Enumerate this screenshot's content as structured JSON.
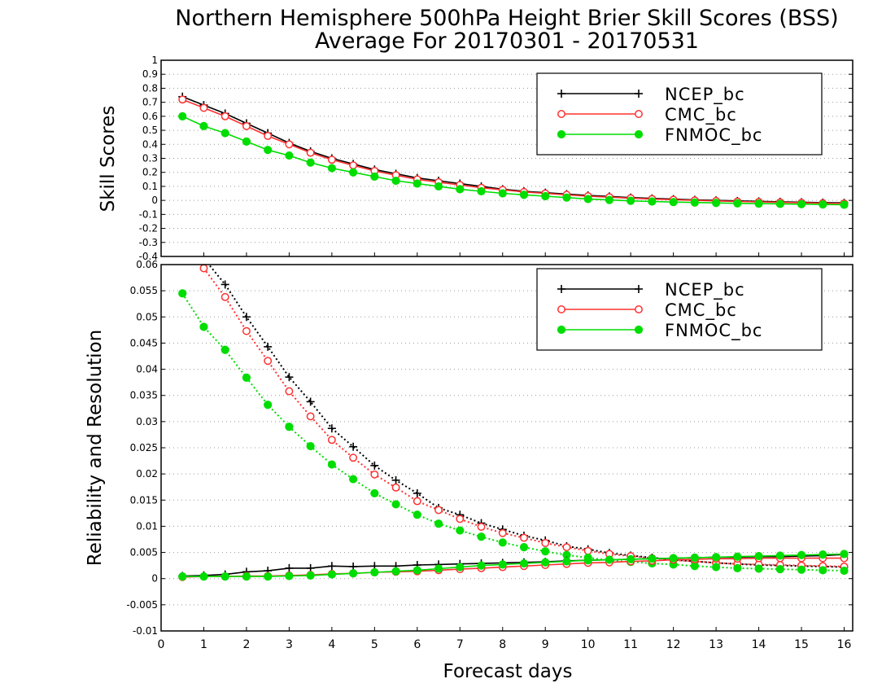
{
  "chart_data": [
    {
      "type": "line",
      "title": "Northern Hemisphere 500hPa Height Brier Skill Scores (BSS)",
      "subtitle": "Average For 20170301 - 20170531",
      "ylabel": "Skill Scores",
      "ylim": [
        -0.4,
        1.0
      ],
      "yticks": [
        -0.4,
        -0.3,
        -0.2,
        -0.1,
        0,
        0.1,
        0.2,
        0.3,
        0.4,
        0.5,
        0.6,
        0.7,
        0.8,
        0.9,
        1
      ],
      "ytick_labels": [
        "-0.4",
        "-0.3",
        "-0.2",
        "-0.1",
        "0",
        "0.1",
        "0.2",
        "0.3",
        "0.4",
        "0.5",
        "0.6",
        "0.7",
        "0.8",
        "0.9",
        "1"
      ],
      "grid": true,
      "legend_position": "top-right",
      "x": [
        0.5,
        1.0,
        1.5,
        2.0,
        2.5,
        3.0,
        3.5,
        4.0,
        4.5,
        5.0,
        5.5,
        6.0,
        6.5,
        7.0,
        7.5,
        8.0,
        8.5,
        9.0,
        9.5,
        10.0,
        10.5,
        11.0,
        11.5,
        12.0,
        12.5,
        13.0,
        13.5,
        14.0,
        14.5,
        15.0,
        15.5,
        16.0
      ],
      "series": [
        {
          "name": "NCEP_bc",
          "color": "#000000",
          "marker": "plus",
          "values": [
            0.74,
            0.68,
            0.62,
            0.55,
            0.48,
            0.41,
            0.35,
            0.3,
            0.26,
            0.22,
            0.19,
            0.16,
            0.14,
            0.12,
            0.1,
            0.08,
            0.065,
            0.055,
            0.045,
            0.035,
            0.028,
            0.02,
            0.014,
            0.009,
            0.004,
            0.0,
            -0.004,
            -0.007,
            -0.01,
            -0.013,
            -0.016,
            -0.018
          ]
        },
        {
          "name": "CMC_bc",
          "color": "#ff3030",
          "marker": "open-circle",
          "values": [
            0.72,
            0.66,
            0.6,
            0.53,
            0.46,
            0.4,
            0.34,
            0.29,
            0.25,
            0.21,
            0.18,
            0.15,
            0.13,
            0.11,
            0.09,
            0.075,
            0.06,
            0.05,
            0.04,
            0.03,
            0.023,
            0.016,
            0.01,
            0.005,
            0.0,
            -0.004,
            -0.008,
            -0.011,
            -0.014,
            -0.017,
            -0.02,
            -0.022
          ]
        },
        {
          "name": "FNMOC_bc",
          "color": "#00dd00",
          "marker": "filled-circle",
          "values": [
            0.6,
            0.53,
            0.48,
            0.42,
            0.36,
            0.32,
            0.27,
            0.23,
            0.2,
            0.17,
            0.14,
            0.12,
            0.1,
            0.08,
            0.065,
            0.05,
            0.04,
            0.03,
            0.02,
            0.01,
            0.003,
            -0.003,
            -0.008,
            -0.012,
            -0.015,
            -0.018,
            -0.021,
            -0.023,
            -0.025,
            -0.027,
            -0.029,
            -0.031
          ]
        }
      ]
    },
    {
      "type": "line",
      "ylabel": "Reliability and Resolution",
      "xlabel": "Forecast days",
      "xlim": [
        0,
        16.2
      ],
      "ylim": [
        -0.01,
        0.06
      ],
      "yticks": [
        -0.01,
        -0.005,
        0,
        0.005,
        0.01,
        0.015,
        0.02,
        0.025,
        0.03,
        0.035,
        0.04,
        0.045,
        0.05,
        0.055,
        0.06
      ],
      "ytick_labels": [
        "-0.01",
        "-0.005",
        "0",
        "0.005",
        "0.01",
        "0.015",
        "0.02",
        "0.025",
        "0.03",
        "0.035",
        "0.04",
        "0.045",
        "0.05",
        "0.055",
        "0.06"
      ],
      "xticks": [
        0,
        1,
        2,
        3,
        4,
        5,
        6,
        7,
        8,
        9,
        10,
        11,
        12,
        13,
        14,
        15,
        16
      ],
      "xtick_labels": [
        "0",
        "1",
        "2",
        "3",
        "4",
        "5",
        "6",
        "7",
        "8",
        "9",
        "10",
        "11",
        "12",
        "13",
        "14",
        "15",
        "16"
      ],
      "grid": true,
      "legend_position": "top-right",
      "x": [
        0.5,
        1.0,
        1.5,
        2.0,
        2.5,
        3.0,
        3.5,
        4.0,
        4.5,
        5.0,
        5.5,
        6.0,
        6.5,
        7.0,
        7.5,
        8.0,
        8.5,
        9.0,
        9.5,
        10.0,
        10.5,
        11.0,
        11.5,
        12.0,
        12.5,
        13.0,
        13.5,
        14.0,
        14.5,
        15.0,
        15.5,
        16.0
      ],
      "series": [
        {
          "name": "NCEP_bc",
          "quantity": "reliability",
          "color": "#000000",
          "marker": "plus",
          "line": "dotted",
          "values": [
            0.0655,
            0.0612,
            0.0562,
            0.05,
            0.0443,
            0.0385,
            0.0338,
            0.0287,
            0.0252,
            0.0216,
            0.0188,
            0.0163,
            0.0135,
            0.0122,
            0.0106,
            0.0094,
            0.0082,
            0.0073,
            0.0062,
            0.0056,
            0.0049,
            0.0044,
            0.004,
            0.0036,
            0.0033,
            0.003,
            0.0028,
            0.0026,
            0.0025,
            0.0024,
            0.0023,
            0.0022
          ]
        },
        {
          "name": "CMC_bc",
          "quantity": "reliability",
          "color": "#ff3030",
          "marker": "open-circle",
          "line": "dotted",
          "values": [
            0.064,
            0.0593,
            0.0538,
            0.0473,
            0.0416,
            0.0358,
            0.031,
            0.0265,
            0.0231,
            0.0199,
            0.0174,
            0.0148,
            0.0131,
            0.0114,
            0.0099,
            0.0087,
            0.0078,
            0.0068,
            0.006,
            0.0053,
            0.0047,
            0.0043,
            0.0039,
            0.0035,
            0.0033,
            0.003,
            0.0028,
            0.0027,
            0.0026,
            0.0025,
            0.0024,
            0.0023
          ]
        },
        {
          "name": "FNMOC_bc",
          "quantity": "reliability",
          "color": "#00dd00",
          "marker": "filled-circle",
          "line": "dotted",
          "values": [
            0.0545,
            0.0481,
            0.0437,
            0.0384,
            0.0332,
            0.029,
            0.0253,
            0.0218,
            0.019,
            0.0163,
            0.0142,
            0.0122,
            0.0105,
            0.0092,
            0.008,
            0.0069,
            0.006,
            0.0052,
            0.0045,
            0.004,
            0.0035,
            0.0032,
            0.0029,
            0.0027,
            0.0024,
            0.0022,
            0.002,
            0.0019,
            0.0018,
            0.0017,
            0.0016,
            0.0015
          ]
        },
        {
          "name": "NCEP_bc",
          "quantity": "resolution",
          "color": "#000000",
          "marker": "plus",
          "line": "solid",
          "values": [
            0.0005,
            0.0006,
            0.0008,
            0.0013,
            0.0015,
            0.002,
            0.002,
            0.0024,
            0.0023,
            0.0024,
            0.0024,
            0.0026,
            0.0027,
            0.0028,
            0.0029,
            0.003,
            0.0031,
            0.0032,
            0.0034,
            0.0035,
            0.0036,
            0.0037,
            0.0038,
            0.0039,
            0.004,
            0.0041,
            0.0041,
            0.0042,
            0.0042,
            0.0043,
            0.0044,
            0.0046
          ]
        },
        {
          "name": "CMC_bc",
          "quantity": "resolution",
          "color": "#ff3030",
          "marker": "open-circle",
          "line": "solid",
          "values": [
            0.0003,
            0.0004,
            0.0004,
            0.0005,
            0.0005,
            0.0006,
            0.0007,
            0.0009,
            0.001,
            0.0012,
            0.0013,
            0.0014,
            0.0016,
            0.0018,
            0.002,
            0.0022,
            0.0024,
            0.0026,
            0.0028,
            0.003,
            0.0031,
            0.0033,
            0.0034,
            0.0036,
            0.0037,
            0.0038,
            0.0038,
            0.0039,
            0.0039,
            0.0039,
            0.0039,
            0.0039
          ]
        },
        {
          "name": "FNMOC_bc",
          "quantity": "resolution",
          "color": "#00dd00",
          "marker": "filled-circle",
          "line": "solid",
          "values": [
            0.0004,
            0.0004,
            0.0004,
            0.0004,
            0.0004,
            0.0005,
            0.0006,
            0.0008,
            0.001,
            0.0012,
            0.0014,
            0.0016,
            0.0019,
            0.0022,
            0.0025,
            0.0027,
            0.0029,
            0.0031,
            0.0033,
            0.0035,
            0.0036,
            0.0037,
            0.0038,
            0.0039,
            0.004,
            0.0041,
            0.0042,
            0.0043,
            0.0044,
            0.0045,
            0.0046,
            0.0047
          ]
        }
      ]
    }
  ]
}
